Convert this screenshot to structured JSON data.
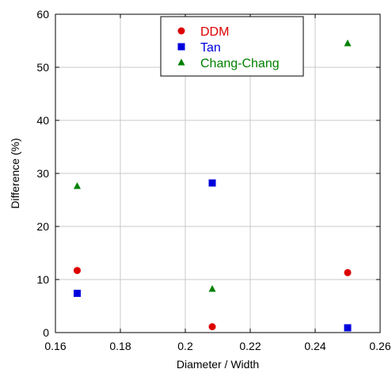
{
  "chart_data": {
    "type": "scatter",
    "title": "",
    "xlabel": "Diameter / Width",
    "ylabel": "Difference (%)",
    "xlim": [
      0.16,
      0.26
    ],
    "ylim": [
      0,
      60
    ],
    "xticks": [
      0.16,
      0.18,
      0.2,
      0.22,
      0.24,
      0.26
    ],
    "xtick_labels": [
      "0.16",
      "0.18",
      "0.2",
      "0.22",
      "0.24",
      "0.26"
    ],
    "yticks": [
      0,
      10,
      20,
      30,
      40,
      50,
      60
    ],
    "ytick_labels": [
      "0",
      "10",
      "20",
      "30",
      "40",
      "50",
      "60"
    ],
    "grid": true,
    "legend_position": "top-center",
    "series": [
      {
        "name": "DDM",
        "color": "#dd0000",
        "marker": "circle",
        "x": [
          0.1667,
          0.2083,
          0.25
        ],
        "y": [
          11.7,
          1.1,
          11.3
        ]
      },
      {
        "name": "Tan",
        "color": "#0000dd",
        "marker": "square",
        "x": [
          0.1667,
          0.2083,
          0.25
        ],
        "y": [
          7.4,
          28.2,
          0.9
        ]
      },
      {
        "name": "Chang-Chang",
        "color": "#008000",
        "marker": "triangle",
        "x": [
          0.1667,
          0.2083,
          0.25
        ],
        "y": [
          27.6,
          8.2,
          54.5
        ]
      }
    ]
  }
}
